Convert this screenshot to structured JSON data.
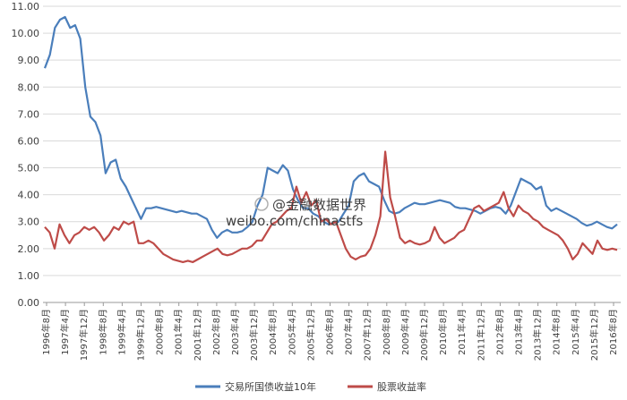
{
  "chart_data": {
    "type": "line",
    "title": "",
    "xlabel": "",
    "ylabel": "",
    "ylim": [
      0,
      11
    ],
    "yticks": [
      "0.00",
      "1.00",
      "2.00",
      "3.00",
      "4.00",
      "5.00",
      "6.00",
      "7.00",
      "8.00",
      "9.00",
      "10.00",
      "11.00"
    ],
    "grid": "horizontal",
    "legend_position": "bottom",
    "x_tick_labels": [
      "1996年8月",
      "1997年4月",
      "1997年12月",
      "1998年8月",
      "1999年4月",
      "1999年12月",
      "2000年8月",
      "2001年4月",
      "2001年12月",
      "2002年8月",
      "2003年4月",
      "2003年12月",
      "2004年8月",
      "2005年4月",
      "2005年12月",
      "2006年8月",
      "2007年4月",
      "2007年12月",
      "2008年8月",
      "2009年4月",
      "2009年12月",
      "2010年8月",
      "2011年4月",
      "2011年12月",
      "2012年8月",
      "2013年4月",
      "2013年12月",
      "2014年8月",
      "2015年4月",
      "2015年12月",
      "2016年8月"
    ],
    "series": [
      {
        "name": "交易所国债收益10年",
        "color": "#4a7ebb",
        "values": [
          8.7,
          9.2,
          10.2,
          10.5,
          10.6,
          10.2,
          10.3,
          9.8,
          8.0,
          6.9,
          6.7,
          6.2,
          4.8,
          5.2,
          5.3,
          4.6,
          4.3,
          3.9,
          3.5,
          3.1,
          3.5,
          3.5,
          3.55,
          3.5,
          3.45,
          3.4,
          3.35,
          3.4,
          3.35,
          3.3,
          3.3,
          3.2,
          3.1,
          2.7,
          2.4,
          2.6,
          2.7,
          2.6,
          2.6,
          2.65,
          2.8,
          3.0,
          3.6,
          4.0,
          5.0,
          4.9,
          4.8,
          5.1,
          4.9,
          4.2,
          3.8,
          3.5,
          3.5,
          3.3,
          3.2,
          3.0,
          2.9,
          2.95,
          3.0,
          3.3,
          3.6,
          4.5,
          4.7,
          4.8,
          4.5,
          4.4,
          4.3,
          3.8,
          3.4,
          3.3,
          3.35,
          3.5,
          3.6,
          3.7,
          3.65,
          3.65,
          3.7,
          3.75,
          3.8,
          3.75,
          3.7,
          3.55,
          3.5,
          3.5,
          3.45,
          3.4,
          3.3,
          3.4,
          3.5,
          3.55,
          3.5,
          3.3,
          3.6,
          4.1,
          4.6,
          4.5,
          4.4,
          4.2,
          4.3,
          3.6,
          3.4,
          3.5,
          3.4,
          3.3,
          3.2,
          3.1,
          2.95,
          2.85,
          2.9,
          3.0,
          2.9,
          2.8,
          2.75,
          2.9
        ]
      },
      {
        "name": "股票收益率",
        "color": "#be4b48",
        "values": [
          2.8,
          2.6,
          2.0,
          2.9,
          2.5,
          2.2,
          2.5,
          2.6,
          2.8,
          2.7,
          2.8,
          2.6,
          2.3,
          2.5,
          2.8,
          2.7,
          3.0,
          2.9,
          3.0,
          2.2,
          2.2,
          2.3,
          2.2,
          2.0,
          1.8,
          1.7,
          1.6,
          1.55,
          1.5,
          1.55,
          1.5,
          1.6,
          1.7,
          1.8,
          1.9,
          2.0,
          1.8,
          1.75,
          1.8,
          1.9,
          2.0,
          2.0,
          2.1,
          2.3,
          2.3,
          2.6,
          2.9,
          3.0,
          3.2,
          3.4,
          3.5,
          4.3,
          3.7,
          4.1,
          3.6,
          3.8,
          3.0,
          3.1,
          2.9,
          3.0,
          2.5,
          2.0,
          1.7,
          1.6,
          1.7,
          1.75,
          2.0,
          2.5,
          3.2,
          5.6,
          3.9,
          3.2,
          2.4,
          2.2,
          2.3,
          2.2,
          2.15,
          2.2,
          2.3,
          2.8,
          2.4,
          2.2,
          2.3,
          2.4,
          2.6,
          2.7,
          3.1,
          3.5,
          3.6,
          3.4,
          3.5,
          3.6,
          3.7,
          4.1,
          3.5,
          3.2,
          3.6,
          3.4,
          3.3,
          3.1,
          3.0,
          2.8,
          2.7,
          2.6,
          2.5,
          2.3,
          2.0,
          1.6,
          1.8,
          2.2,
          2.0,
          1.8,
          2.3,
          2.0,
          1.95,
          2.0,
          1.95
        ]
      }
    ]
  },
  "watermark": "@金融数据世界",
  "watermark_url": "weibo.com/chinastfs"
}
